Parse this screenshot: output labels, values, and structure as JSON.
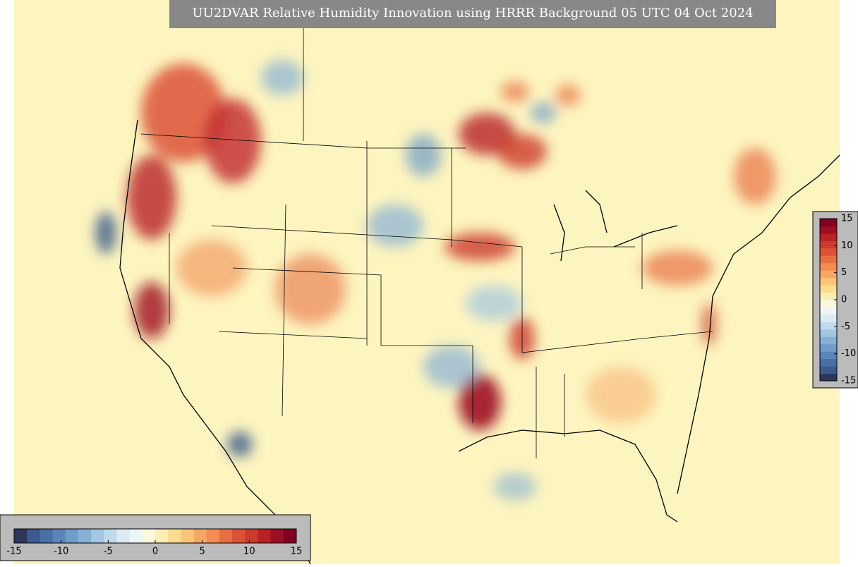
{
  "title": "UU2DVAR Relative Humidity Innovation using HRRR Background 05 UTC 04 Oct 2024",
  "colorbar": {
    "range": [
      -15,
      15
    ],
    "colors": [
      "#2c3659",
      "#3c5a8c",
      "#4a6fa5",
      "#5a85b8",
      "#6f9cc8",
      "#86b1d6",
      "#a3c6e2",
      "#c0d9ec",
      "#dceaf3",
      "#eef5f5",
      "#fbf8dc",
      "#fdeeb3",
      "#fddc91",
      "#fcc57a",
      "#f8a866",
      "#f28c53",
      "#e86f44",
      "#db5236",
      "#cc3a2c",
      "#b82224",
      "#9e0e22",
      "#7f0020"
    ],
    "vertical_ticks": [
      15,
      10,
      5,
      0,
      -5,
      -10,
      -15
    ],
    "horizontal_ticks": [
      -15,
      -10,
      -5,
      0,
      5,
      10,
      15
    ]
  }
}
